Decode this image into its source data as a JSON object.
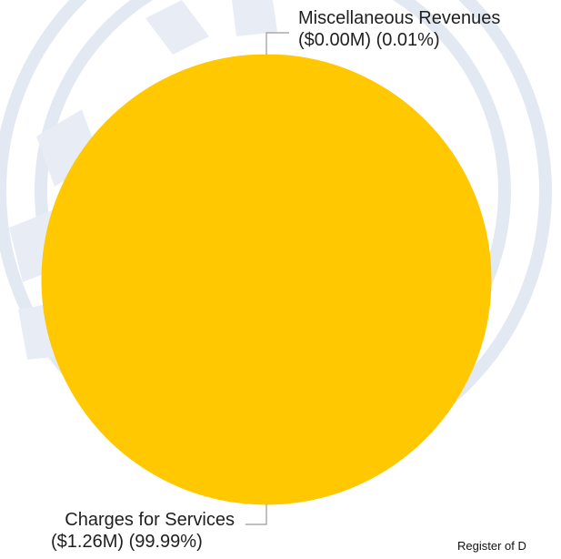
{
  "chart_data": {
    "type": "pie",
    "slices": [
      {
        "label": "Miscellaneous Revenues",
        "detail": "($0.00M) (0.01%)",
        "value": 0.0,
        "percent": 0.01
      },
      {
        "label": "Charges for Services",
        "detail": "($1.26M) (99.99%)",
        "value": 1.26,
        "percent": 99.99
      }
    ],
    "colors": {
      "slice": "#ffc800",
      "leader": "#9a9a9a",
      "watermark": "#e3e9f2"
    }
  },
  "footer": {
    "text": "Register of D"
  }
}
